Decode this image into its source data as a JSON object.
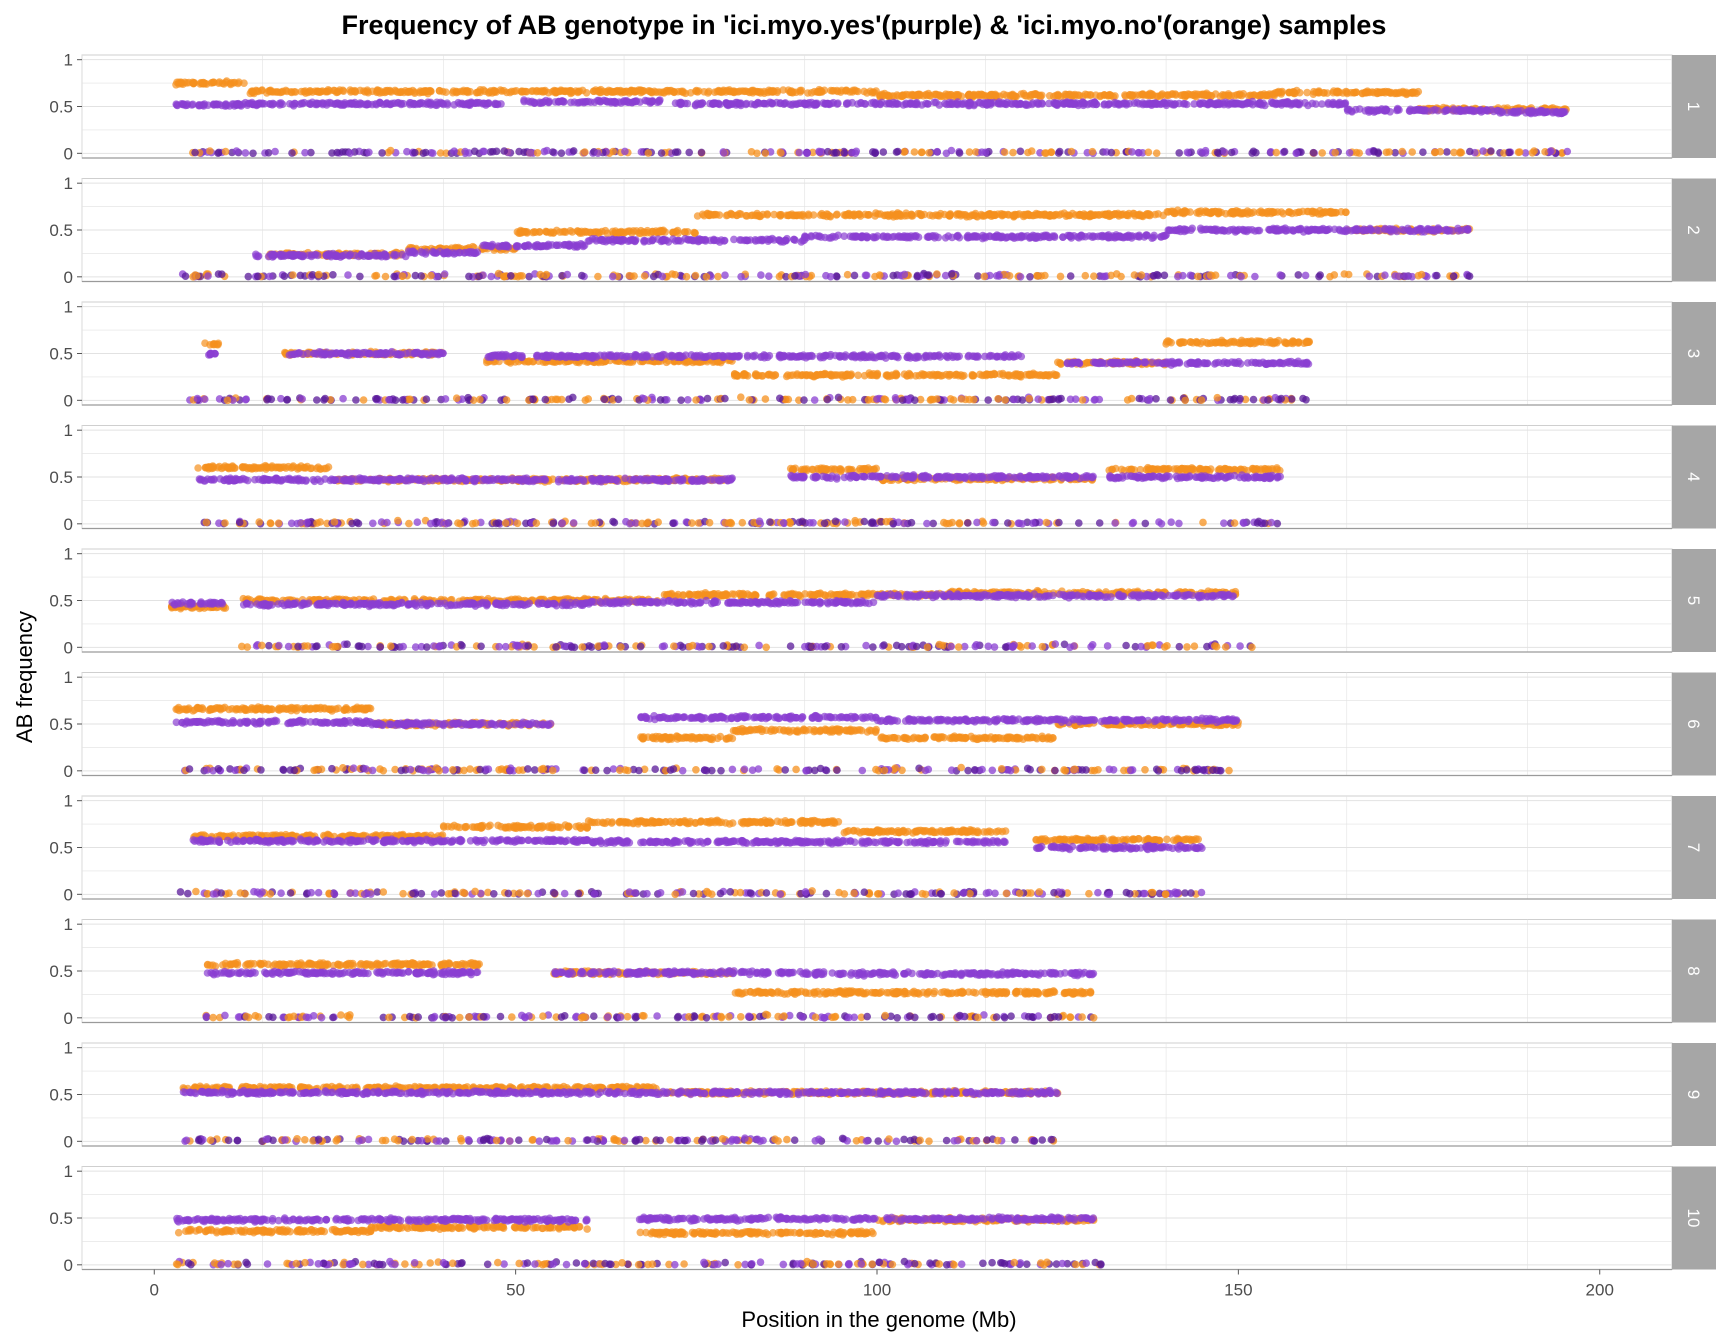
{
  "chart_data": {
    "type": "scatter",
    "title": "Frequency of AB genotype in 'ici.myo.yes'(purple) & 'ici.myo.no'(orange) samples",
    "xlabel": "Position in the genome (Mb)",
    "ylabel": "AB frequency",
    "xlim": [
      -10,
      210
    ],
    "ylim": [
      -0.05,
      1.05
    ],
    "x_ticks": [
      0,
      50,
      100,
      150,
      200
    ],
    "y_ticks": [
      0,
      0.5,
      1
    ],
    "y_tick_labels": [
      "0",
      "0.5",
      "1"
    ],
    "grid": true,
    "facets": [
      "1",
      "2",
      "3",
      "4",
      "5",
      "6",
      "7",
      "8",
      "9",
      "10"
    ],
    "colors": {
      "purple": "#8a3fd1",
      "orange": "#f5901e",
      "dark_purple": "#5a1a9a",
      "strip": "#a6a6a6",
      "grid": "#e2e2e2"
    },
    "series": [
      {
        "color": "purple",
        "segments": [
          {
            "c": 1,
            "x0": 3,
            "x1": 13,
            "y": 0.52
          },
          {
            "c": 1,
            "x0": 13,
            "x1": 48,
            "y": 0.53
          },
          {
            "c": 1,
            "x0": 51,
            "x1": 70,
            "y": 0.55
          },
          {
            "c": 1,
            "x0": 72,
            "x1": 165,
            "y": 0.53
          },
          {
            "c": 1,
            "x0": 165,
            "x1": 185,
            "y": 0.46
          },
          {
            "c": 1,
            "x0": 185,
            "x1": 196,
            "y": 0.44
          },
          {
            "c": 2,
            "x0": 14,
            "x1": 35,
            "y": 0.23
          },
          {
            "c": 2,
            "x0": 35,
            "x1": 45,
            "y": 0.26
          },
          {
            "c": 2,
            "x0": 45,
            "x1": 60,
            "y": 0.33
          },
          {
            "c": 2,
            "x0": 60,
            "x1": 90,
            "y": 0.39
          },
          {
            "c": 2,
            "x0": 90,
            "x1": 140,
            "y": 0.43
          },
          {
            "c": 2,
            "x0": 140,
            "x1": 182,
            "y": 0.5
          },
          {
            "c": 3,
            "x0": 7,
            "x1": 9,
            "y": 0.5
          },
          {
            "c": 3,
            "x0": 18,
            "x1": 40,
            "y": 0.5
          },
          {
            "c": 3,
            "x0": 46,
            "x1": 120,
            "y": 0.47
          },
          {
            "c": 3,
            "x0": 126,
            "x1": 160,
            "y": 0.4
          },
          {
            "c": 4,
            "x0": 6,
            "x1": 40,
            "y": 0.47
          },
          {
            "c": 4,
            "x0": 40,
            "x1": 80,
            "y": 0.47
          },
          {
            "c": 4,
            "x0": 88,
            "x1": 130,
            "y": 0.5
          },
          {
            "c": 4,
            "x0": 132,
            "x1": 156,
            "y": 0.5
          },
          {
            "c": 5,
            "x0": 2,
            "x1": 10,
            "y": 0.47
          },
          {
            "c": 5,
            "x0": 12,
            "x1": 60,
            "y": 0.46
          },
          {
            "c": 5,
            "x0": 60,
            "x1": 100,
            "y": 0.48
          },
          {
            "c": 5,
            "x0": 100,
            "x1": 150,
            "y": 0.55
          },
          {
            "c": 6,
            "x0": 3,
            "x1": 30,
            "y": 0.52
          },
          {
            "c": 6,
            "x0": 30,
            "x1": 55,
            "y": 0.5
          },
          {
            "c": 6,
            "x0": 67,
            "x1": 100,
            "y": 0.57
          },
          {
            "c": 6,
            "x0": 100,
            "x1": 150,
            "y": 0.54
          },
          {
            "c": 7,
            "x0": 5,
            "x1": 60,
            "y": 0.57
          },
          {
            "c": 7,
            "x0": 60,
            "x1": 118,
            "y": 0.56
          },
          {
            "c": 7,
            "x0": 122,
            "x1": 145,
            "y": 0.5
          },
          {
            "c": 8,
            "x0": 7,
            "x1": 45,
            "y": 0.48
          },
          {
            "c": 8,
            "x0": 55,
            "x1": 90,
            "y": 0.48
          },
          {
            "c": 8,
            "x0": 90,
            "x1": 130,
            "y": 0.47
          },
          {
            "c": 9,
            "x0": 4,
            "x1": 125,
            "y": 0.52
          },
          {
            "c": 10,
            "x0": 3,
            "x1": 60,
            "y": 0.48
          },
          {
            "c": 10,
            "x0": 67,
            "x1": 130,
            "y": 0.49
          }
        ]
      },
      {
        "color": "orange",
        "segments": [
          {
            "c": 1,
            "x0": 3,
            "x1": 13,
            "y": 0.75
          },
          {
            "c": 1,
            "x0": 13,
            "x1": 100,
            "y": 0.66
          },
          {
            "c": 1,
            "x0": 100,
            "x1": 155,
            "y": 0.62
          },
          {
            "c": 1,
            "x0": 155,
            "x1": 175,
            "y": 0.65
          },
          {
            "c": 1,
            "x0": 175,
            "x1": 196,
            "y": 0.47
          },
          {
            "c": 2,
            "x0": 15,
            "x1": 35,
            "y": 0.24
          },
          {
            "c": 2,
            "x0": 35,
            "x1": 50,
            "y": 0.3
          },
          {
            "c": 2,
            "x0": 50,
            "x1": 75,
            "y": 0.48
          },
          {
            "c": 2,
            "x0": 75,
            "x1": 140,
            "y": 0.66
          },
          {
            "c": 2,
            "x0": 140,
            "x1": 165,
            "y": 0.69
          },
          {
            "c": 2,
            "x0": 165,
            "x1": 182,
            "y": 0.5
          },
          {
            "c": 3,
            "x0": 7,
            "x1": 9,
            "y": 0.6
          },
          {
            "c": 3,
            "x0": 18,
            "x1": 40,
            "y": 0.5
          },
          {
            "c": 3,
            "x0": 46,
            "x1": 80,
            "y": 0.42
          },
          {
            "c": 3,
            "x0": 80,
            "x1": 125,
            "y": 0.27
          },
          {
            "c": 3,
            "x0": 125,
            "x1": 140,
            "y": 0.4
          },
          {
            "c": 3,
            "x0": 140,
            "x1": 160,
            "y": 0.62
          },
          {
            "c": 4,
            "x0": 6,
            "x1": 25,
            "y": 0.6
          },
          {
            "c": 4,
            "x0": 25,
            "x1": 80,
            "y": 0.47
          },
          {
            "c": 4,
            "x0": 88,
            "x1": 100,
            "y": 0.58
          },
          {
            "c": 4,
            "x0": 100,
            "x1": 130,
            "y": 0.48
          },
          {
            "c": 4,
            "x0": 132,
            "x1": 156,
            "y": 0.58
          },
          {
            "c": 5,
            "x0": 2,
            "x1": 10,
            "y": 0.43
          },
          {
            "c": 5,
            "x0": 12,
            "x1": 70,
            "y": 0.5
          },
          {
            "c": 5,
            "x0": 70,
            "x1": 110,
            "y": 0.56
          },
          {
            "c": 5,
            "x0": 110,
            "x1": 150,
            "y": 0.58
          },
          {
            "c": 6,
            "x0": 3,
            "x1": 30,
            "y": 0.66
          },
          {
            "c": 6,
            "x0": 30,
            "x1": 55,
            "y": 0.5
          },
          {
            "c": 6,
            "x0": 67,
            "x1": 80,
            "y": 0.35
          },
          {
            "c": 6,
            "x0": 80,
            "x1": 100,
            "y": 0.43
          },
          {
            "c": 6,
            "x0": 100,
            "x1": 125,
            "y": 0.35
          },
          {
            "c": 6,
            "x0": 125,
            "x1": 150,
            "y": 0.5
          },
          {
            "c": 7,
            "x0": 5,
            "x1": 40,
            "y": 0.62
          },
          {
            "c": 7,
            "x0": 40,
            "x1": 60,
            "y": 0.72
          },
          {
            "c": 7,
            "x0": 60,
            "x1": 95,
            "y": 0.77
          },
          {
            "c": 7,
            "x0": 95,
            "x1": 118,
            "y": 0.67
          },
          {
            "c": 7,
            "x0": 122,
            "x1": 145,
            "y": 0.58
          },
          {
            "c": 8,
            "x0": 7,
            "x1": 45,
            "y": 0.57
          },
          {
            "c": 8,
            "x0": 55,
            "x1": 80,
            "y": 0.48
          },
          {
            "c": 8,
            "x0": 80,
            "x1": 130,
            "y": 0.27
          },
          {
            "c": 9,
            "x0": 4,
            "x1": 70,
            "y": 0.57
          },
          {
            "c": 9,
            "x0": 70,
            "x1": 125,
            "y": 0.52
          },
          {
            "c": 10,
            "x0": 3,
            "x1": 30,
            "y": 0.36
          },
          {
            "c": 10,
            "x0": 30,
            "x1": 60,
            "y": 0.4
          },
          {
            "c": 10,
            "x0": 67,
            "x1": 100,
            "y": 0.34
          },
          {
            "c": 10,
            "x0": 100,
            "x1": 130,
            "y": 0.48
          }
        ]
      }
    ],
    "near_zero_ranges": [
      {
        "c": 1,
        "x0": 4,
        "x1": 196
      },
      {
        "c": 2,
        "x0": 3,
        "x1": 182
      },
      {
        "c": 3,
        "x0": 4,
        "x1": 160
      },
      {
        "c": 4,
        "x0": 5,
        "x1": 156
      },
      {
        "c": 5,
        "x0": 12,
        "x1": 152
      },
      {
        "c": 6,
        "x0": 3,
        "x1": 150
      },
      {
        "c": 7,
        "x0": 3,
        "x1": 145
      },
      {
        "c": 8,
        "x0": 7,
        "x1": 130
      },
      {
        "c": 9,
        "x0": 4,
        "x1": 125
      },
      {
        "c": 10,
        "x0": 3,
        "x1": 131
      }
    ]
  }
}
